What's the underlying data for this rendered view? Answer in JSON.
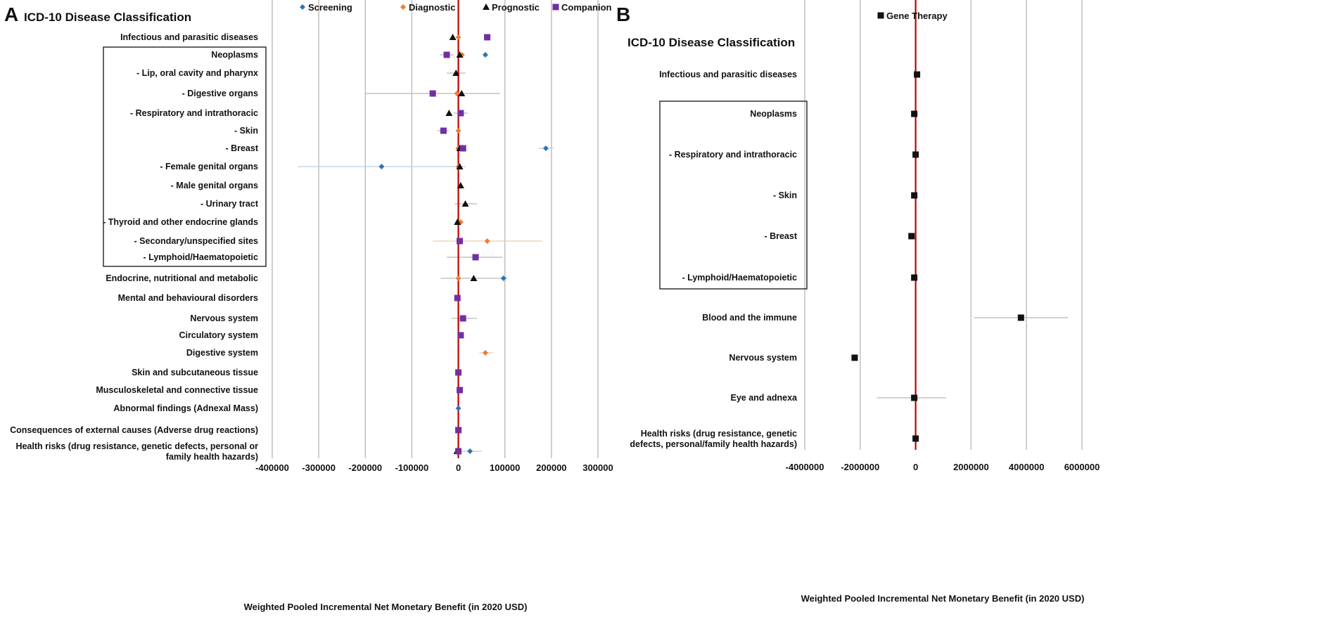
{
  "figure": {
    "panel_a_letter": "A",
    "panel_b_letter": "B"
  },
  "colors": {
    "Screening": "#2e75b6",
    "Diagnostic": "#ed7d31",
    "Prognostic": "#111111",
    "Companion": "#7030a0",
    "Gene Therapy": "#111111",
    "zero_line": "#c00000",
    "grid": "#bfbfbf"
  },
  "chart_data": [
    {
      "type": "scatter",
      "subtype": "forest",
      "panel": "A",
      "title": "ICD-10 Disease Classification",
      "xlabel": "Weighted Pooled Incremental Net Monetary Benefit (in 2020 USD)",
      "xlim": [
        -400000,
        300000
      ],
      "xticks": [
        -400000,
        -300000,
        -200000,
        -100000,
        0,
        100000,
        200000,
        300000
      ],
      "xtick_labels": [
        "-400000",
        "-300000",
        "-200000",
        "-100000",
        "0",
        "100000",
        "200000",
        "300000"
      ],
      "grid": "vertical",
      "legend_position": "top",
      "reference_line": 0,
      "categories": [
        "Infectious and parasitic diseases",
        "Neoplasms",
        "- Lip, oral cavity and pharynx",
        "- Digestive organs",
        "- Respiratory and intrathoracic",
        "- Skin",
        "- Breast",
        "- Female genital organs",
        "- Male genital organs",
        "- Urinary tract",
        "- Thyroid and other endocrine glands",
        "- Secondary/unspecified sites",
        "- Lymphoid/Haematopoietic",
        "Endocrine, nutritional and metabolic",
        "Mental and behavioural disorders",
        "Nervous system",
        "Circulatory system",
        "Digestive system",
        "Skin and subcutaneous tissue",
        "Musculoskeletal and connective tissue",
        "Abnormal findings (Adnexal Mass)",
        "Consequences of external causes (Adverse drug reactions)",
        [
          "Health risks (drug resistance, genetic defects, personal or",
          "family health hazards)"
        ]
      ],
      "boxed_categories": [
        1,
        12
      ],
      "series": [
        {
          "name": "Screening",
          "marker": "diamond",
          "points": [
            {
              "cat": 1,
              "x": 58000
            },
            {
              "cat": 6,
              "x": 188000,
              "lo": 172000,
              "hi": 205000
            },
            {
              "cat": 7,
              "x": -165000,
              "lo": -345000,
              "hi": 15000
            },
            {
              "cat": 13,
              "x": 97000
            },
            {
              "cat": 16,
              "x": 5000
            },
            {
              "cat": 20,
              "x": 0
            },
            {
              "cat": 22,
              "x": 25000,
              "lo": 0,
              "hi": 50000
            }
          ]
        },
        {
          "name": "Diagnostic",
          "marker": "diamond",
          "points": [
            {
              "cat": 0,
              "x": 0
            },
            {
              "cat": 1,
              "x": 8000
            },
            {
              "cat": 3,
              "x": -3000
            },
            {
              "cat": 5,
              "x": 0
            },
            {
              "cat": 6,
              "x": 0
            },
            {
              "cat": 7,
              "x": 0
            },
            {
              "cat": 10,
              "x": 5000
            },
            {
              "cat": 11,
              "x": 62000,
              "lo": -55000,
              "hi": 180000
            },
            {
              "cat": 13,
              "x": 0
            },
            {
              "cat": 17,
              "x": 58000,
              "lo": 45000,
              "hi": 75000
            }
          ]
        },
        {
          "name": "Prognostic",
          "marker": "triangle",
          "points": [
            {
              "cat": 0,
              "x": -12000
            },
            {
              "cat": 1,
              "x": 3000
            },
            {
              "cat": 2,
              "x": -5000,
              "lo": -25000,
              "hi": 15000
            },
            {
              "cat": 3,
              "x": 7000,
              "lo": -200000,
              "hi": 90000
            },
            {
              "cat": 4,
              "x": -20000
            },
            {
              "cat": 6,
              "x": 3000
            },
            {
              "cat": 7,
              "x": 3000
            },
            {
              "cat": 8,
              "x": 5000
            },
            {
              "cat": 9,
              "x": 15000,
              "lo": -8000,
              "hi": 40000
            },
            {
              "cat": 10,
              "x": -2000
            },
            {
              "cat": 13,
              "x": 33000,
              "lo": -38000,
              "hi": 105000
            },
            {
              "cat": 22,
              "x": -3000
            }
          ]
        },
        {
          "name": "Companion",
          "marker": "square",
          "points": [
            {
              "cat": 0,
              "x": 62000
            },
            {
              "cat": 1,
              "x": -25000,
              "lo": -40000,
              "hi": -10000
            },
            {
              "cat": 3,
              "x": -55000
            },
            {
              "cat": 4,
              "x": 5000,
              "lo": -10000,
              "hi": 20000
            },
            {
              "cat": 5,
              "x": -32000,
              "lo": -45000,
              "hi": -20000
            },
            {
              "cat": 6,
              "x": 10000
            },
            {
              "cat": 11,
              "x": 3000
            },
            {
              "cat": 12,
              "x": 37000,
              "lo": -25000,
              "hi": 95000
            },
            {
              "cat": 14,
              "x": -2000
            },
            {
              "cat": 15,
              "x": 10000,
              "lo": -15000,
              "hi": 40000
            },
            {
              "cat": 16,
              "x": 5000
            },
            {
              "cat": 18,
              "x": 0
            },
            {
              "cat": 19,
              "x": 3000
            },
            {
              "cat": 21,
              "x": 0
            },
            {
              "cat": 22,
              "x": 0
            }
          ]
        }
      ]
    },
    {
      "type": "scatter",
      "subtype": "forest",
      "panel": "B",
      "title": "ICD-10 Disease Classification",
      "xlabel": "Weighted Pooled Incremental Net Monetary Benefit (in 2020 USD)",
      "xlim": [
        -4000000,
        6000000
      ],
      "xticks": [
        -4000000,
        -2000000,
        0,
        2000000,
        4000000,
        6000000
      ],
      "xtick_labels": [
        "-4000000",
        "-2000000",
        "0",
        "2000000",
        "4000000",
        "6000000"
      ],
      "grid": "vertical",
      "legend_position": "top",
      "reference_line": 0,
      "categories": [
        "Infectious and parasitic diseases",
        "Neoplasms",
        "- Respiratory and intrathoracic",
        "- Skin",
        "- Breast",
        "- Lymphoid/Haematopoietic",
        "Blood and the immune",
        "Nervous system",
        "Eye and adnexa",
        [
          "Health risks (drug resistance, genetic",
          "defects, personal/family health hazards)"
        ]
      ],
      "boxed_categories": [
        1,
        5
      ],
      "series": [
        {
          "name": "Gene Therapy",
          "marker": "square",
          "points": [
            {
              "cat": 0,
              "x": 50000
            },
            {
              "cat": 1,
              "x": -50000
            },
            {
              "cat": 2,
              "x": 0
            },
            {
              "cat": 3,
              "x": -50000
            },
            {
              "cat": 4,
              "x": -150000,
              "lo": -250000,
              "hi": -50000
            },
            {
              "cat": 5,
              "x": -50000
            },
            {
              "cat": 6,
              "x": 3800000,
              "lo": 2100000,
              "hi": 5500000
            },
            {
              "cat": 7,
              "x": -2200000
            },
            {
              "cat": 8,
              "x": -50000,
              "lo": -1400000,
              "hi": 1100000
            },
            {
              "cat": 9,
              "x": 0
            }
          ]
        }
      ]
    }
  ]
}
